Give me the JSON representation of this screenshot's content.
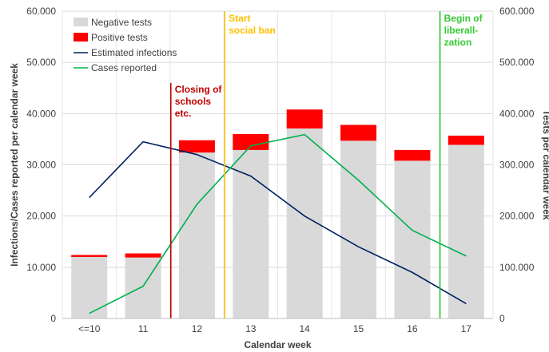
{
  "chart_data": {
    "type": "bar",
    "categories": [
      "<=10",
      "11",
      "12",
      "13",
      "14",
      "15",
      "16",
      "17"
    ],
    "xlabel": "Calendar week",
    "ylabel_left": "Infections/Cases reported per calendar week",
    "ylabel_right": "Tests per calendar week",
    "ylim_left": [
      0,
      60000
    ],
    "ylim_right": [
      0,
      600000
    ],
    "yticks_left": [
      "0",
      "10.000",
      "20.000",
      "30.000",
      "40.000",
      "50.000",
      "60.000"
    ],
    "yticks_right": [
      "0",
      "100.000",
      "200.000",
      "300.000",
      "400.000",
      "500.000",
      "600.000"
    ],
    "grid": true,
    "legend_position": "top-left",
    "series": [
      {
        "name": "Negative tests",
        "kind": "stacked-bar",
        "axis": "right",
        "color": "#d9d9d9",
        "values": [
          120000,
          119000,
          324000,
          329000,
          371000,
          347000,
          308000,
          339000
        ]
      },
      {
        "name": "Positive tests",
        "kind": "stacked-bar",
        "axis": "right",
        "color": "#ff0000",
        "values": [
          4000,
          8000,
          24000,
          31000,
          37000,
          31000,
          21000,
          18000
        ]
      },
      {
        "name": "Estimated infections",
        "kind": "line",
        "axis": "left",
        "color": "#002060",
        "values": [
          23600,
          34500,
          32000,
          27800,
          20000,
          14000,
          9000,
          2900
        ]
      },
      {
        "name": "Cases reported",
        "kind": "line",
        "axis": "left",
        "color": "#00b050",
        "values": [
          1000,
          6300,
          22300,
          33700,
          35900,
          27000,
          17200,
          12200
        ]
      }
    ],
    "annotations": [
      {
        "text_lines": [
          "Closing of",
          "schools",
          "etc."
        ],
        "between": [
          1,
          2
        ],
        "color": "#c00000"
      },
      {
        "text_lines": [
          "Start",
          "social ban"
        ],
        "between": [
          2,
          3
        ],
        "color": "#ffc000"
      },
      {
        "text_lines": [
          "Begin of",
          "liberall-",
          "zation"
        ],
        "between": [
          6,
          7
        ],
        "color": "#33cc33"
      }
    ]
  }
}
